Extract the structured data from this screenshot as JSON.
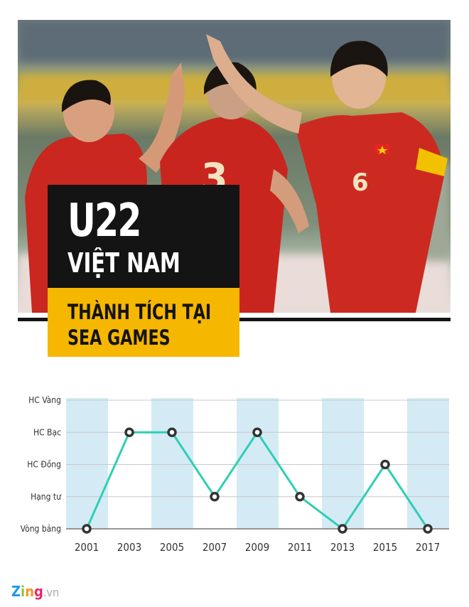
{
  "header": {
    "title_line1": "U22",
    "title_line2": "VIỆT NAM",
    "subtitle_line1": "THÀNH TÍCH TẠI",
    "subtitle_line2": "SEA GAMES"
  },
  "colors": {
    "line": "#2ecfb4",
    "band": "#d4ebf5",
    "marker": "#333333",
    "title_bg": "#141414",
    "subtitle_bg": "#f6b700"
  },
  "chart_data": {
    "type": "line",
    "categories": [
      "2001",
      "2003",
      "2005",
      "2007",
      "2009",
      "2011",
      "2013",
      "2015",
      "2017"
    ],
    "y_levels": [
      "Vòng bảng",
      "Hạng tư",
      "HC Đồng",
      "HC Bạc",
      "HC Vàng"
    ],
    "values": [
      "Vòng bảng",
      "HC Bạc",
      "HC Bạc",
      "Hạng tư",
      "HC Bạc",
      "Hạng tư",
      "Vòng bảng",
      "HC Đồng",
      "Vòng bảng"
    ],
    "grid": true,
    "alternating_column_bands": true
  },
  "footer": {
    "logo_main": "Zing",
    "logo_suffix": ".vn"
  }
}
